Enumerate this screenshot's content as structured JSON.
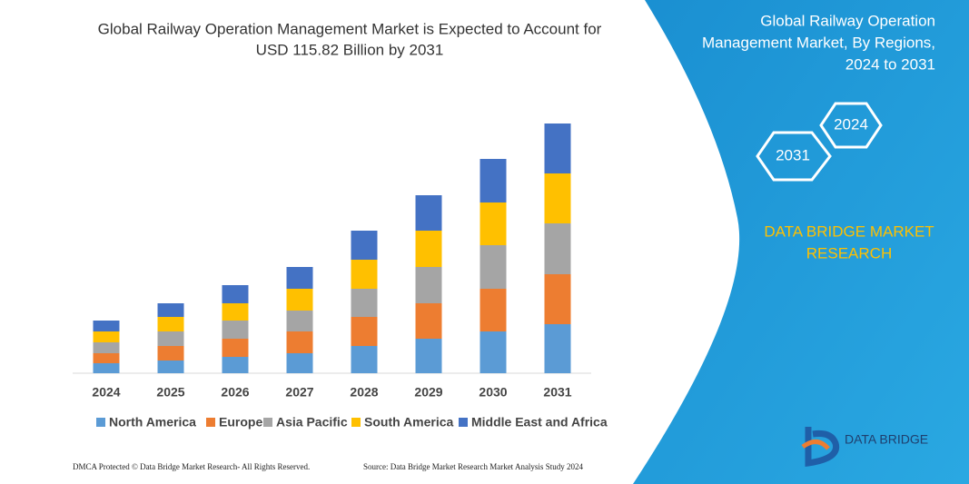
{
  "chart_data": {
    "type": "bar",
    "stacked": true,
    "title": "Global Railway Operation Management Market is Expected to Account for",
    "subtitle": "USD 115.82 Billion by 2031",
    "categories": [
      "2024",
      "2025",
      "2026",
      "2027",
      "2028",
      "2029",
      "2030",
      "2031"
    ],
    "series": [
      {
        "name": "North America",
        "color": "#5b9bd5",
        "values": [
          11,
          14,
          18,
          22,
          30,
          38,
          46,
          54
        ]
      },
      {
        "name": "Europe",
        "color": "#ed7d31",
        "values": [
          11,
          16,
          20,
          24,
          32,
          39,
          47,
          55
        ]
      },
      {
        "name": "Asia Pacific",
        "color": "#a5a5a5",
        "values": [
          12,
          16,
          20,
          23,
          31,
          40,
          48,
          56
        ]
      },
      {
        "name": "South America",
        "color": "#ffc000",
        "values": [
          12,
          16,
          19,
          24,
          32,
          40,
          47,
          55
        ]
      },
      {
        "name": "Middle East and Africa",
        "color": "#4472c4",
        "values": [
          12,
          15,
          20,
          24,
          32,
          39,
          48,
          55
        ]
      }
    ],
    "legend": "bottom"
  },
  "panel": {
    "title_lines": [
      "Global Railway Operation",
      "Management Market, By Regions,",
      "2024 to 2031"
    ],
    "hexagons": [
      "2024",
      "2031"
    ],
    "brand_lines": [
      "DATA BRIDGE MARKET",
      "RESEARCH"
    ],
    "logo": "DATA BRIDGE"
  },
  "footer": {
    "left": "DMCA Protected © Data Bridge Market Research-  All Rights Reserved.",
    "right": "Source: Data Bridge Market Research  Market Analysis Study 2024"
  }
}
